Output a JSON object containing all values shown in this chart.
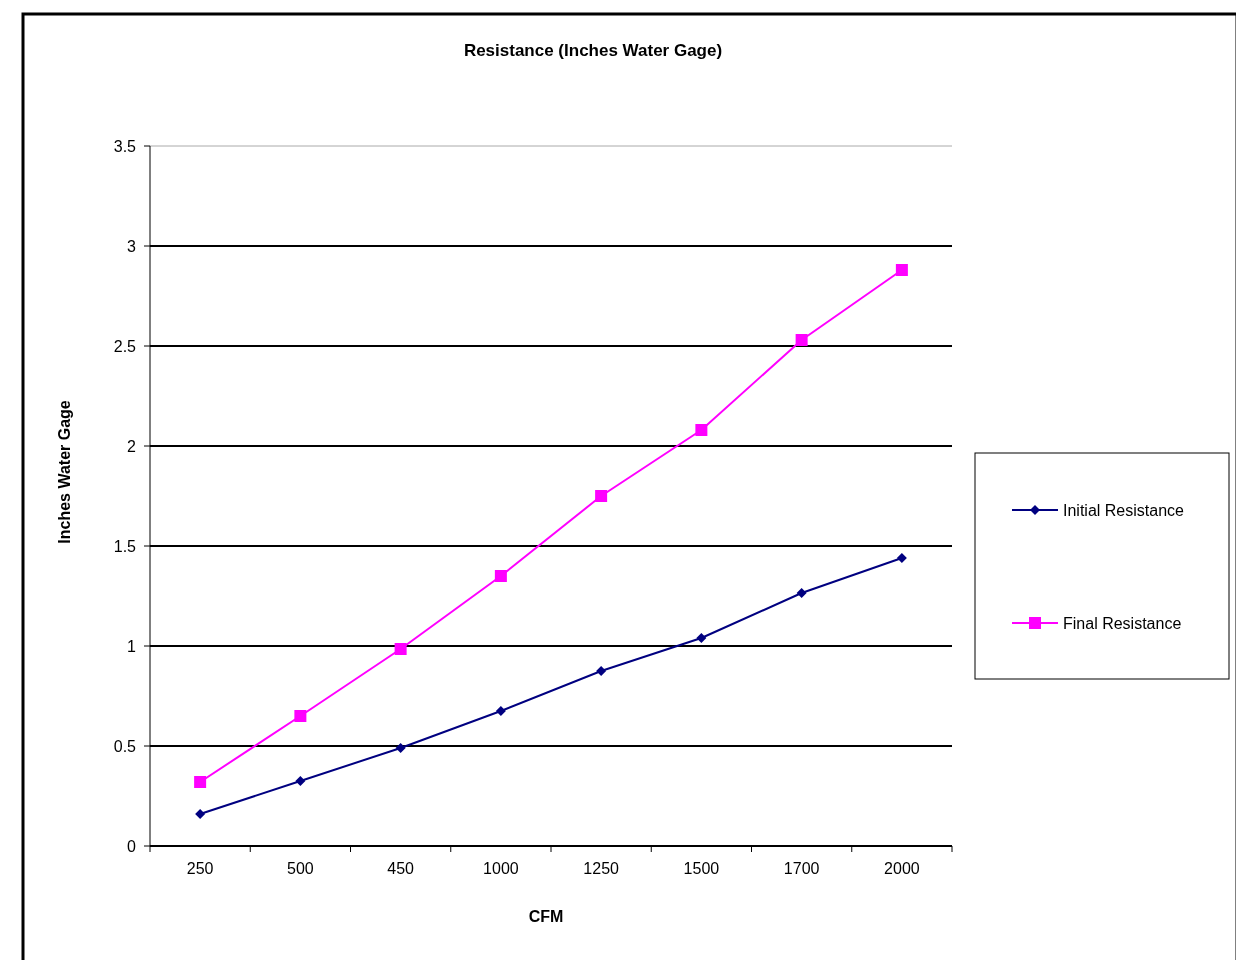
{
  "chart_data": {
    "type": "line",
    "title": "Resistance (Inches Water Gage)",
    "xlabel": "CFM",
    "ylabel": "Inches Water Gage",
    "categories": [
      "250",
      "500",
      "450",
      "1000",
      "1250",
      "1500",
      "1700",
      "2000"
    ],
    "series": [
      {
        "name": "Initial Resistance",
        "color": "#000080",
        "marker": "diamond",
        "values": [
          0.16,
          0.325,
          0.49,
          0.675,
          0.875,
          1.04,
          1.265,
          1.44
        ]
      },
      {
        "name": "Final Resistance",
        "color": "#ff00ff",
        "marker": "square",
        "values": [
          0.32,
          0.65,
          0.985,
          1.35,
          1.75,
          2.08,
          2.53,
          2.88
        ]
      }
    ],
    "ylim": [
      0,
      3.5
    ],
    "yticks": [
      0,
      0.5,
      1,
      1.5,
      2,
      2.5,
      3,
      3.5
    ],
    "grid": "y",
    "legend": "right"
  }
}
